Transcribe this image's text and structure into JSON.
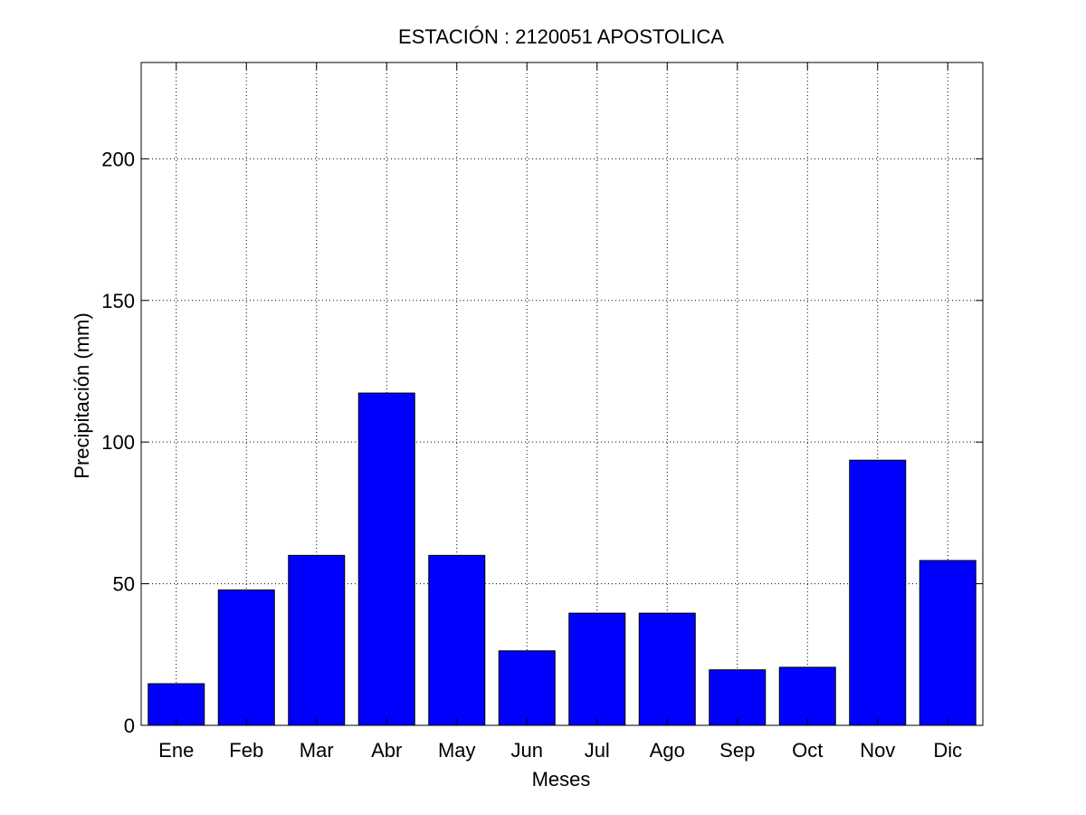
{
  "chart_data": {
    "type": "bar",
    "title": "ESTACIÓN :  2120051  APOSTOLICA",
    "xlabel": "Meses",
    "ylabel": "Precipitación (mm)",
    "categories": [
      "Ene",
      "Feb",
      "Mar",
      "Abr",
      "May",
      "Jun",
      "Jul",
      "Ago",
      "Sep",
      "Oct",
      "Nov",
      "Dic"
    ],
    "values": [
      14.7,
      47.8,
      60.0,
      117.3,
      60.0,
      26.3,
      39.6,
      39.6,
      19.6,
      20.5,
      93.6,
      58.2
    ],
    "ylim": [
      0,
      234
    ],
    "yticks": [
      0,
      50,
      100,
      150,
      200
    ],
    "ytick_labels": [
      "0",
      "50",
      "100",
      "150",
      "200"
    ],
    "grid": true,
    "bar_color": "#0000ff"
  }
}
